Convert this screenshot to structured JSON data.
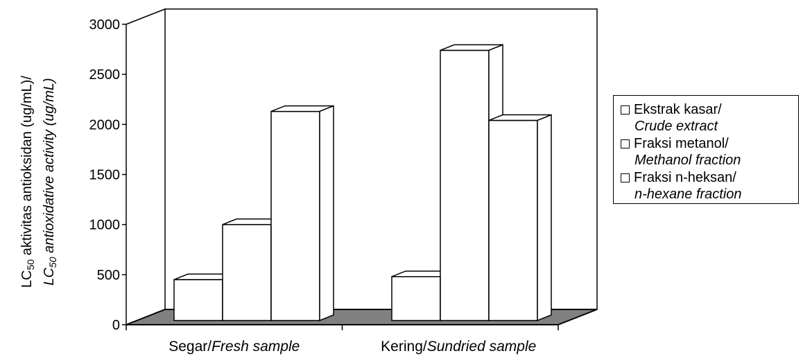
{
  "chart_data": {
    "type": "bar",
    "categories": [
      {
        "plain": "Segar/",
        "italic": "Fresh sample"
      },
      {
        "plain": "Kering/",
        "italic": "Sundried  sample"
      }
    ],
    "series": [
      {
        "name_plain": "Ekstrak kasar/",
        "name_italic": "Crude extract",
        "values": [
          450,
          480
        ]
      },
      {
        "name_plain": "Fraksi metanol/",
        "name_italic": "Methanol fraction",
        "values": [
          1000,
          2740
        ]
      },
      {
        "name_plain": "Fraksi n-heksan/",
        "name_italic": "n-hexane fraction",
        "values": [
          2130,
          2040
        ]
      }
    ],
    "ylim": [
      0,
      3000
    ],
    "yticks": [
      "0",
      "500",
      "1000",
      "1500",
      "2000",
      "2500",
      "3000"
    ],
    "ylabel": {
      "line1_prefix": "LC",
      "line1_sub": "50",
      "line1_rest": " aktivitas antioksidan (ug/mL)/",
      "line2_prefix": "LC",
      "line2_sub": "50",
      "line2_rest": " antioxidative activity (ug/mL)"
    },
    "style": "3d-box",
    "colors": {
      "bar_fill": "#ffffff",
      "floor": "#808080",
      "edge": "#000000"
    },
    "legend_position": "right"
  }
}
